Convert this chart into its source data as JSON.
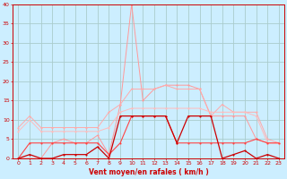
{
  "title": "",
  "xlabel": "Vent moyen/en rafales ( km/h )",
  "ylabel": "",
  "xlim": [
    -0.5,
    23.5
  ],
  "ylim": [
    0,
    40
  ],
  "yticks": [
    0,
    5,
    10,
    15,
    20,
    25,
    30,
    35,
    40
  ],
  "xticks": [
    0,
    1,
    2,
    3,
    4,
    5,
    6,
    7,
    8,
    9,
    10,
    11,
    12,
    13,
    14,
    15,
    16,
    17,
    18,
    19,
    20,
    21,
    22,
    23
  ],
  "bg_color": "#cceeff",
  "grid_color": "#aacccc",
  "color_dark": "#cc0000",
  "color_mid1": "#ff4444",
  "color_light1": "#ff9999",
  "color_light2": "#ffaaaa",
  "color_light3": "#ffbbbb",
  "series_dark": [
    0,
    1,
    0,
    0,
    1,
    1,
    1,
    3,
    0,
    11,
    11,
    11,
    11,
    11,
    4,
    11,
    11,
    11,
    0,
    1,
    2,
    0,
    1,
    0
  ],
  "series_mid1": [
    0,
    4,
    4,
    4,
    4,
    4,
    4,
    4,
    1,
    4,
    11,
    11,
    11,
    11,
    4,
    4,
    4,
    4,
    4,
    4,
    4,
    5,
    4,
    4
  ],
  "series_light1": [
    7,
    10,
    7,
    7,
    7,
    7,
    7,
    7,
    8,
    12,
    13,
    13,
    13,
    13,
    13,
    13,
    13,
    12,
    12,
    12,
    12,
    11,
    4,
    4
  ],
  "series_light2": [
    8,
    11,
    8,
    8,
    8,
    8,
    8,
    8,
    12,
    14,
    18,
    18,
    18,
    19,
    18,
    18,
    18,
    11,
    14,
    12,
    12,
    12,
    5,
    4
  ],
  "series_light3": [
    0,
    0,
    0,
    4,
    5,
    4,
    4,
    6,
    1,
    14,
    40,
    15,
    18,
    19,
    19,
    19,
    18,
    11,
    11,
    11,
    11,
    5,
    4,
    4
  ]
}
